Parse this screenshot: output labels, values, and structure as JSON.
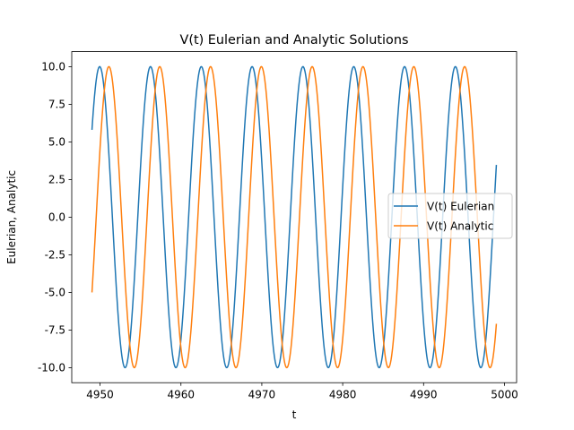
{
  "chart_data": {
    "type": "line",
    "title": "V(t) Eulerian and Analytic Solutions",
    "xlabel": "t",
    "ylabel": "Eulerian, Analytic",
    "xlim": [
      4946.5,
      5001.5
    ],
    "ylim": [
      -11,
      11
    ],
    "xticks": [
      4950,
      4960,
      4970,
      4980,
      4990,
      5000
    ],
    "yticks": [
      -10.0,
      -7.5,
      -5.0,
      -2.5,
      0.0,
      2.5,
      5.0,
      7.5,
      10.0
    ],
    "x_range": [
      4949,
      4999
    ],
    "grid": false,
    "legend_position": "center-right",
    "series": [
      {
        "name": "V(t) Eulerian",
        "color": "#1f77b4",
        "function": "10*sin(omega*t + phase)",
        "amplitude": 10,
        "period": 6.283,
        "value_at_start": 5.8,
        "value_at_end": 3.0
      },
      {
        "name": "V(t) Analytic",
        "color": "#ff7f0e",
        "function": "10*sin(omega*t + phase)",
        "amplitude": 10,
        "period": 6.283,
        "value_at_start": -5.0,
        "value_at_end": -7.5
      }
    ]
  }
}
